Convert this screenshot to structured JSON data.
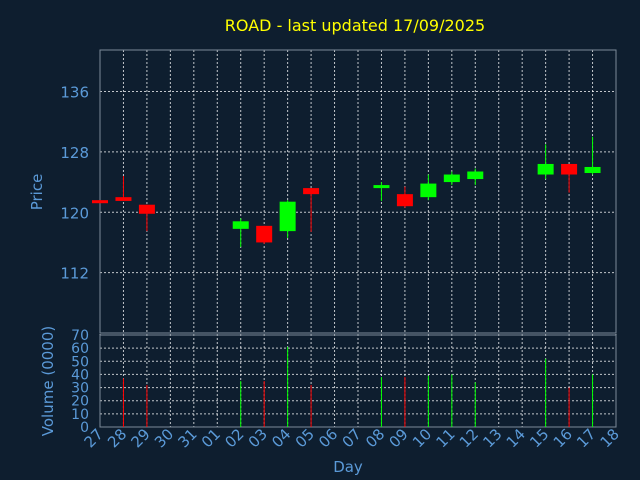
{
  "chart_data": {
    "type": "candlestick",
    "title": "ROAD - last updated 17/09/2025",
    "price_panel": {
      "ylabel": "Price",
      "yticks": [
        112,
        120,
        128,
        136
      ],
      "ylim": [
        104,
        141.5
      ]
    },
    "volume_panel": {
      "ylabel": "Volume (0000)",
      "yticks": [
        0,
        10,
        20,
        30,
        40,
        50,
        60,
        70
      ],
      "ylim": [
        0,
        70
      ]
    },
    "xlabel": "Day",
    "x_ticks": [
      "27",
      "28",
      "29",
      "30",
      "31",
      "01",
      "02",
      "03",
      "04",
      "05",
      "06",
      "07",
      "08",
      "09",
      "10",
      "11",
      "12",
      "13",
      "14",
      "15",
      "16",
      "17",
      "18"
    ],
    "colors": {
      "up": "#00ff00",
      "down": "#ff0000",
      "title": "#ffff00",
      "text": "#5b9ad8",
      "background": "#0e1e2f"
    },
    "candles": [
      {
        "day": "27",
        "open": 121.6,
        "high": 121.6,
        "low": 121.2,
        "close": 121.2,
        "volume": 0
      },
      {
        "day": "28",
        "open": 122.0,
        "high": 124.8,
        "low": 121.6,
        "close": 121.5,
        "volume": 37
      },
      {
        "day": "29",
        "open": 121.0,
        "high": 121.0,
        "low": 117.5,
        "close": 119.8,
        "volume": 32
      },
      {
        "day": "02",
        "open": 117.8,
        "high": 119.2,
        "low": 115.4,
        "close": 118.8,
        "volume": 35
      },
      {
        "day": "03",
        "open": 118.2,
        "high": 118.2,
        "low": 115.8,
        "close": 116.0,
        "volume": 35
      },
      {
        "day": "04",
        "open": 117.5,
        "high": 121.6,
        "low": 116.6,
        "close": 121.4,
        "volume": 61
      },
      {
        "day": "05",
        "open": 123.2,
        "high": 123.2,
        "low": 117.4,
        "close": 122.4,
        "volume": 32
      },
      {
        "day": "08",
        "open": 123.2,
        "high": 124.0,
        "low": 121.5,
        "close": 123.6,
        "volume": 38
      },
      {
        "day": "09",
        "open": 122.4,
        "high": 123.4,
        "low": 120.6,
        "close": 120.8,
        "volume": 38
      },
      {
        "day": "10",
        "open": 122.0,
        "high": 125.0,
        "low": 121.6,
        "close": 123.8,
        "volume": 39
      },
      {
        "day": "11",
        "open": 124.0,
        "high": 125.4,
        "low": 123.6,
        "close": 125.0,
        "volume": 40
      },
      {
        "day": "12",
        "open": 124.4,
        "high": 125.8,
        "low": 123.6,
        "close": 125.4,
        "volume": 34
      },
      {
        "day": "15",
        "open": 125.0,
        "high": 129.0,
        "low": 124.4,
        "close": 126.4,
        "volume": 52
      },
      {
        "day": "16",
        "open": 126.4,
        "high": 126.4,
        "low": 122.6,
        "close": 125.0,
        "volume": 30
      },
      {
        "day": "17",
        "open": 125.2,
        "high": 130.0,
        "low": 125.0,
        "close": 126.0,
        "volume": 40
      }
    ]
  }
}
